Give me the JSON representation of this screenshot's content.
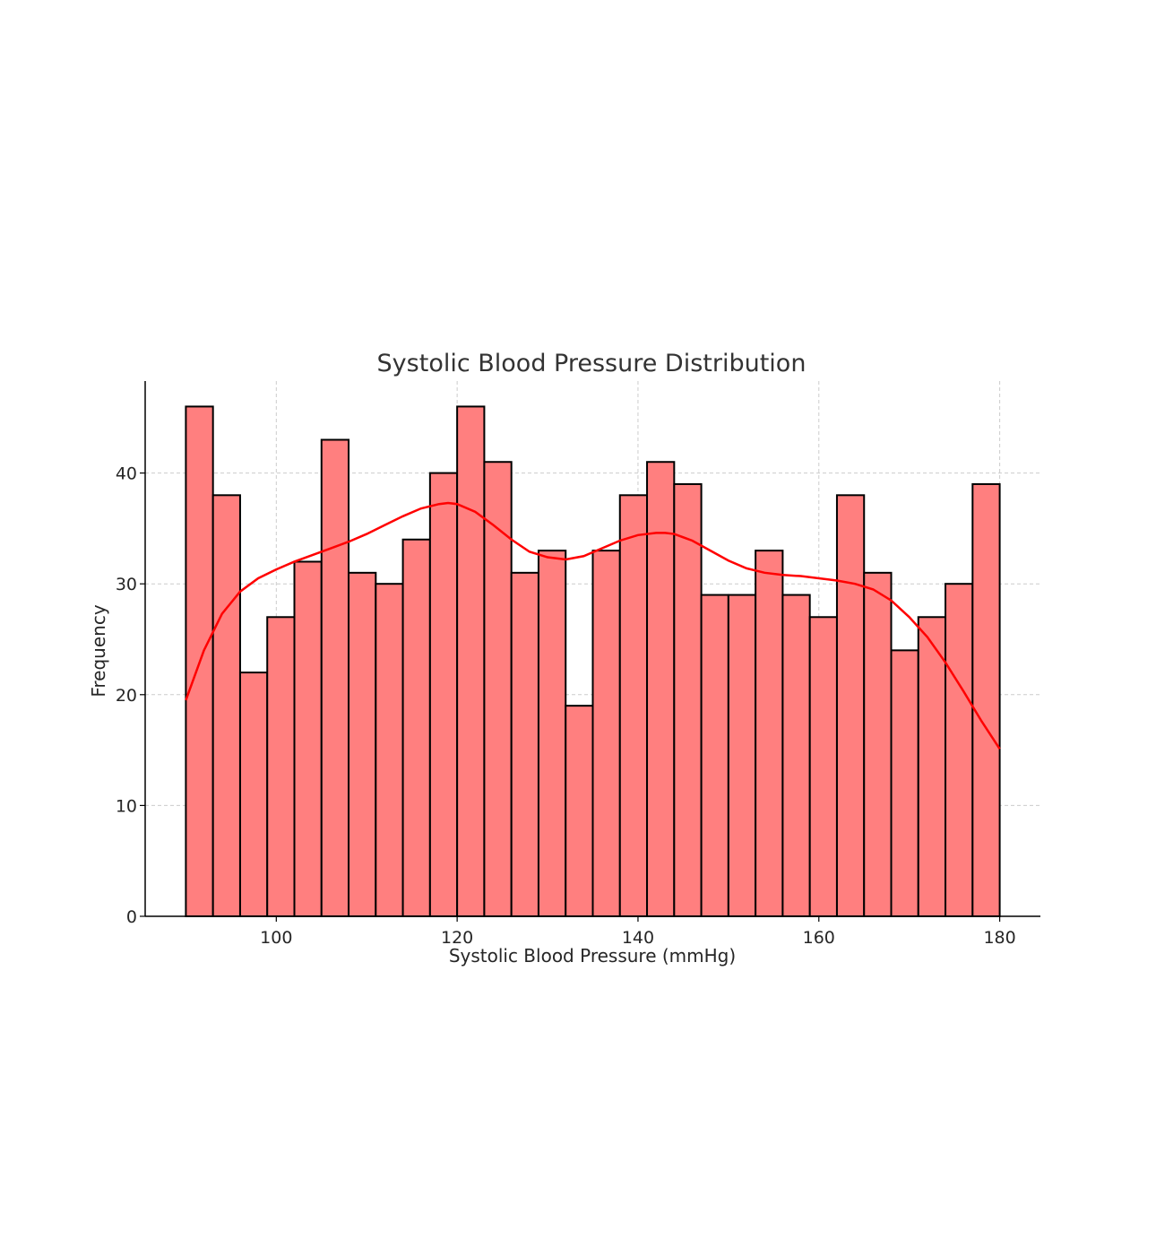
{
  "chart_data": {
    "type": "bar",
    "title": "Systolic Blood Pressure Distribution",
    "xlabel": "Systolic Blood Pressure (mmHg)",
    "ylabel": "Frequency",
    "xlim": [
      85.5,
      184.5
    ],
    "ylim": [
      0,
      48.3
    ],
    "xticks": [
      100,
      120,
      140,
      160,
      180
    ],
    "yticks": [
      0,
      10,
      20,
      30,
      40
    ],
    "grid": true,
    "bin_start": 90,
    "bin_width": 3,
    "bins": [
      {
        "x0": 90,
        "x1": 93,
        "count": 46
      },
      {
        "x0": 93,
        "x1": 96,
        "count": 38
      },
      {
        "x0": 96,
        "x1": 99,
        "count": 22
      },
      {
        "x0": 99,
        "x1": 102,
        "count": 27
      },
      {
        "x0": 102,
        "x1": 105,
        "count": 32
      },
      {
        "x0": 105,
        "x1": 108,
        "count": 43
      },
      {
        "x0": 108,
        "x1": 111,
        "count": 31
      },
      {
        "x0": 111,
        "x1": 114,
        "count": 30
      },
      {
        "x0": 114,
        "x1": 117,
        "count": 34
      },
      {
        "x0": 117,
        "x1": 120,
        "count": 40
      },
      {
        "x0": 120,
        "x1": 123,
        "count": 46
      },
      {
        "x0": 123,
        "x1": 126,
        "count": 41
      },
      {
        "x0": 126,
        "x1": 129,
        "count": 31
      },
      {
        "x0": 129,
        "x1": 132,
        "count": 33
      },
      {
        "x0": 132,
        "x1": 135,
        "count": 19
      },
      {
        "x0": 135,
        "x1": 138,
        "count": 33
      },
      {
        "x0": 138,
        "x1": 141,
        "count": 38
      },
      {
        "x0": 141,
        "x1": 144,
        "count": 41
      },
      {
        "x0": 144,
        "x1": 147,
        "count": 39
      },
      {
        "x0": 147,
        "x1": 150,
        "count": 29
      },
      {
        "x0": 150,
        "x1": 153,
        "count": 29
      },
      {
        "x0": 153,
        "x1": 156,
        "count": 33
      },
      {
        "x0": 156,
        "x1": 159,
        "count": 29
      },
      {
        "x0": 159,
        "x1": 162,
        "count": 27
      },
      {
        "x0": 162,
        "x1": 165,
        "count": 38
      },
      {
        "x0": 165,
        "x1": 168,
        "count": 31
      },
      {
        "x0": 168,
        "x1": 171,
        "count": 24
      },
      {
        "x0": 171,
        "x1": 174,
        "count": 27
      },
      {
        "x0": 174,
        "x1": 177,
        "count": 30
      },
      {
        "x0": 177,
        "x1": 180,
        "count": 39
      }
    ],
    "kde": {
      "x": [
        90,
        92,
        94,
        96,
        98,
        100,
        102,
        104,
        106,
        108,
        110,
        112,
        114,
        116,
        118,
        119,
        120,
        122,
        124,
        126,
        128,
        130,
        132,
        134,
        136,
        138,
        140,
        142,
        143,
        144,
        146,
        148,
        150,
        152,
        154,
        156,
        158,
        160,
        162,
        164,
        166,
        168,
        170,
        172,
        174,
        176,
        178,
        180
      ],
      "y": [
        19.5,
        24.0,
        27.3,
        29.3,
        30.5,
        31.3,
        32.0,
        32.6,
        33.2,
        33.8,
        34.5,
        35.3,
        36.1,
        36.8,
        37.2,
        37.3,
        37.2,
        36.5,
        35.3,
        34.0,
        32.9,
        32.4,
        32.2,
        32.5,
        33.2,
        33.9,
        34.4,
        34.6,
        34.6,
        34.5,
        33.9,
        33.0,
        32.1,
        31.4,
        31.0,
        30.8,
        30.7,
        30.5,
        30.3,
        30.0,
        29.5,
        28.5,
        27.0,
        25.2,
        22.9,
        20.3,
        17.6,
        15.1
      ]
    },
    "colors": {
      "bar_fill": "#ff7f7f",
      "bar_edge": "#000000",
      "kde_line": "#ff0000",
      "grid": "#cccccc",
      "axis": "#000000"
    }
  }
}
